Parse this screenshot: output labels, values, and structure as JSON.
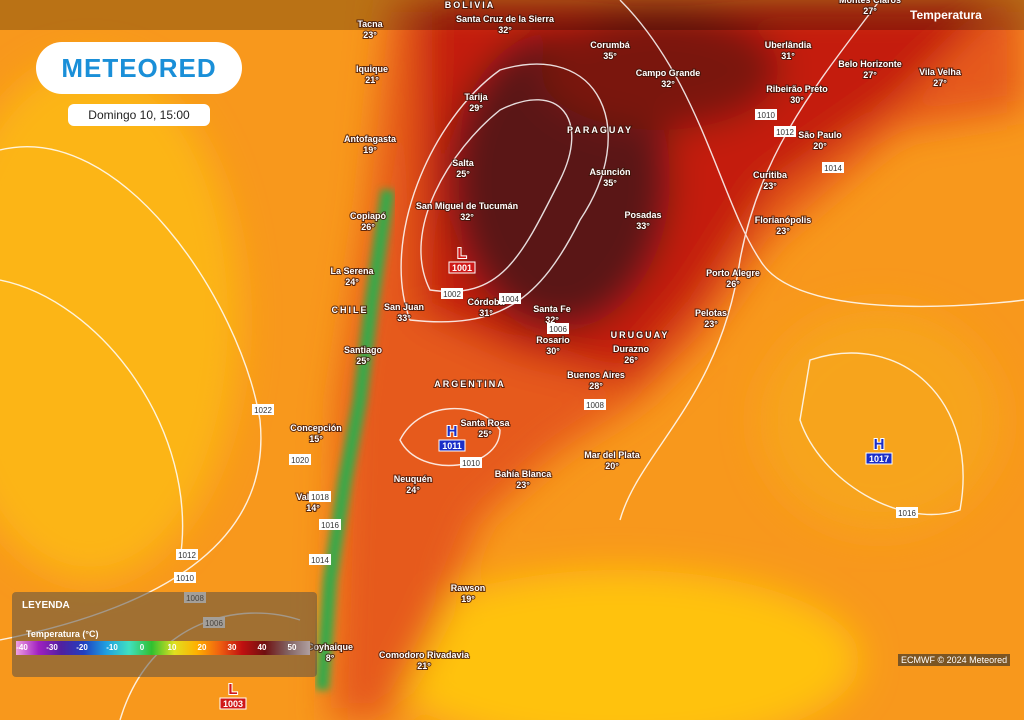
{
  "header": {
    "logo": "METEORED",
    "date": "Domingo 10, 15:00",
    "layer": "Temperatura"
  },
  "countries": [
    "BOLIVIA",
    "PARAGUAY",
    "CHILE",
    "ARGENTINA",
    "URUGUAY"
  ],
  "cities": [
    {
      "name": "Tacna",
      "temp": "23°"
    },
    {
      "name": "Santa Cruz de la Sierra",
      "temp": "32°"
    },
    {
      "name": "Corumbá",
      "temp": "35°"
    },
    {
      "name": "Uberlândia",
      "temp": "31°"
    },
    {
      "name": "Montes Claros",
      "temp": "27°"
    },
    {
      "name": "Belo Horizonte",
      "temp": "27°"
    },
    {
      "name": "Vila Velha",
      "temp": "27°"
    },
    {
      "name": "Campo Grande",
      "temp": "32°"
    },
    {
      "name": "Ribeirão Preto",
      "temp": "30°"
    },
    {
      "name": "Iquique",
      "temp": "21°"
    },
    {
      "name": "Tarija",
      "temp": "29°"
    },
    {
      "name": "Antofagasta",
      "temp": "19°"
    },
    {
      "name": "São Paulo",
      "temp": "20°"
    },
    {
      "name": "Salta",
      "temp": "25°"
    },
    {
      "name": "Asunción",
      "temp": "35°"
    },
    {
      "name": "Curitiba",
      "temp": "23°"
    },
    {
      "name": "San Miguel de Tucumán",
      "temp": "32°"
    },
    {
      "name": "Posadas",
      "temp": "33°"
    },
    {
      "name": "Copiapó",
      "temp": "26°"
    },
    {
      "name": "Florianópolis",
      "temp": "23°"
    },
    {
      "name": "La Serena",
      "temp": "24°"
    },
    {
      "name": "Porto Alegre",
      "temp": "26°"
    },
    {
      "name": "San Juan",
      "temp": "33°"
    },
    {
      "name": "Córdoba",
      "temp": "31°"
    },
    {
      "name": "Santa Fe",
      "temp": "32°"
    },
    {
      "name": "Pelotas",
      "temp": "23°"
    },
    {
      "name": "Rosario",
      "temp": "30°"
    },
    {
      "name": "Durazno",
      "temp": "26°"
    },
    {
      "name": "Santiago",
      "temp": "25°"
    },
    {
      "name": "Buenos Aires",
      "temp": "28°"
    },
    {
      "name": "Santa Rosa",
      "temp": "25°"
    },
    {
      "name": "Concepción",
      "temp": "15°"
    },
    {
      "name": "Mar del Plata",
      "temp": "20°"
    },
    {
      "name": "Neuquén",
      "temp": "24°"
    },
    {
      "name": "Bahía Blanca",
      "temp": "23°"
    },
    {
      "name": "Valdivia",
      "temp": "14°"
    },
    {
      "name": "Rawson",
      "temp": "19°"
    },
    {
      "name": "Coyhaique",
      "temp": "8°"
    },
    {
      "name": "Comodoro Rivadavia",
      "temp": "21°"
    }
  ],
  "pressure_centers": [
    {
      "type": "L",
      "value": 1001
    },
    {
      "type": "H",
      "value": 1011
    },
    {
      "type": "H",
      "value": 1017
    },
    {
      "type": "L",
      "value": 1003
    }
  ],
  "isobars": [
    1002,
    1004,
    1006,
    1008,
    1010,
    1010,
    1012,
    1014,
    1016,
    1018,
    1016,
    1014,
    1022,
    1020,
    1012,
    1010,
    1008,
    1006
  ],
  "legend": {
    "title": "LEYENDA",
    "subtitle": "Temperatura (°C)",
    "ticks": [
      -40,
      -30,
      -20,
      -10,
      0,
      10,
      20,
      30,
      40,
      50
    ]
  },
  "credit": "ECMWF © 2024 Meteored"
}
